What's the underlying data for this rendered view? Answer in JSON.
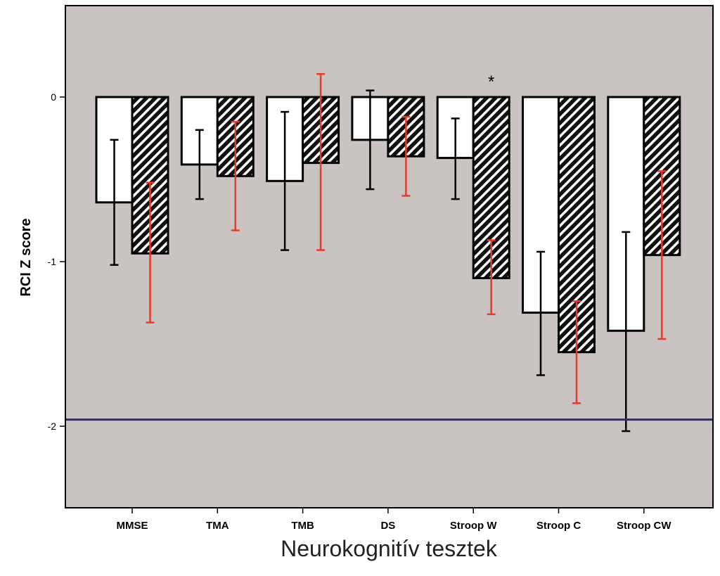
{
  "chart_data": {
    "type": "bar",
    "title": "",
    "xlabel": "Neurokognitív tesztek",
    "ylabel": "RCI Z score",
    "ylim": [
      -2.5,
      0.55
    ],
    "yticks": [
      0,
      -1,
      -2
    ],
    "categories": [
      "MMSE",
      "TMA",
      "TMB",
      "DS",
      "Stroop W",
      "Stroop C",
      "Stroop CW"
    ],
    "series": [
      {
        "style": "white",
        "error_color": "#000000",
        "values": [
          -0.64,
          -0.41,
          -0.51,
          -0.26,
          -0.37,
          -1.31,
          -1.42
        ],
        "error_low": [
          -1.02,
          -0.62,
          -0.93,
          -0.56,
          -0.62,
          -1.69,
          -2.03
        ],
        "error_high": [
          -0.26,
          -0.2,
          -0.09,
          0.04,
          -0.13,
          -0.94,
          -0.82
        ]
      },
      {
        "style": "hatched",
        "error_color": "#e8392e",
        "values": [
          -0.95,
          -0.48,
          -0.4,
          -0.36,
          -1.1,
          -1.55,
          -0.96
        ],
        "error_low": [
          -1.37,
          -0.81,
          -0.93,
          -0.6,
          -1.32,
          -1.86,
          -1.47
        ],
        "error_high": [
          -0.52,
          -0.15,
          0.14,
          -0.12,
          -0.87,
          -1.24,
          -0.45
        ]
      }
    ],
    "reference_line": {
      "y": -1.96,
      "color": "#2e2a78"
    },
    "annotations": [
      {
        "text": "*",
        "category": "Stroop W"
      }
    ],
    "background": "#c9c4c1",
    "grid": false,
    "legend": "none"
  }
}
